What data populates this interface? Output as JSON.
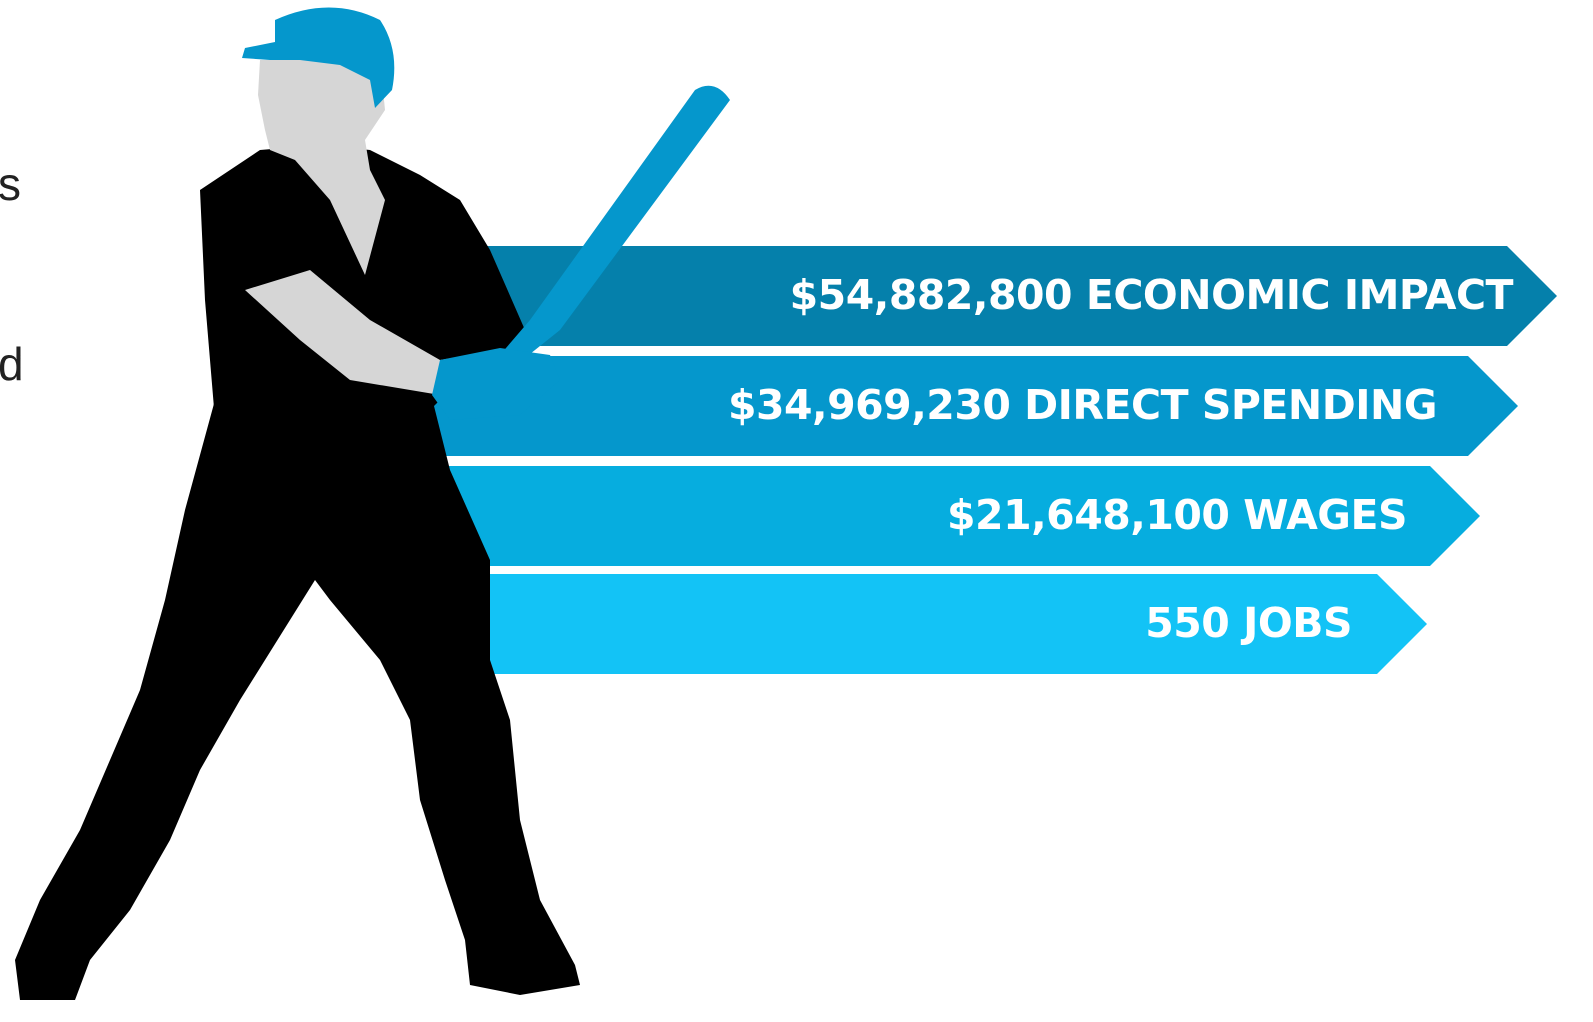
{
  "left_text_fragments": [
    "s",
    "d"
  ],
  "banners": [
    {
      "label": "$54,882,800 ECONOMIC IMPACT",
      "color": "#0580ab"
    },
    {
      "label": "$34,969,230 DIRECT SPENDING",
      "color": "#0597cc"
    },
    {
      "label": "$21,648,100 WAGES",
      "color": "#06addf"
    },
    {
      "label": "550 JOBS",
      "color": "#13c3f6"
    }
  ]
}
